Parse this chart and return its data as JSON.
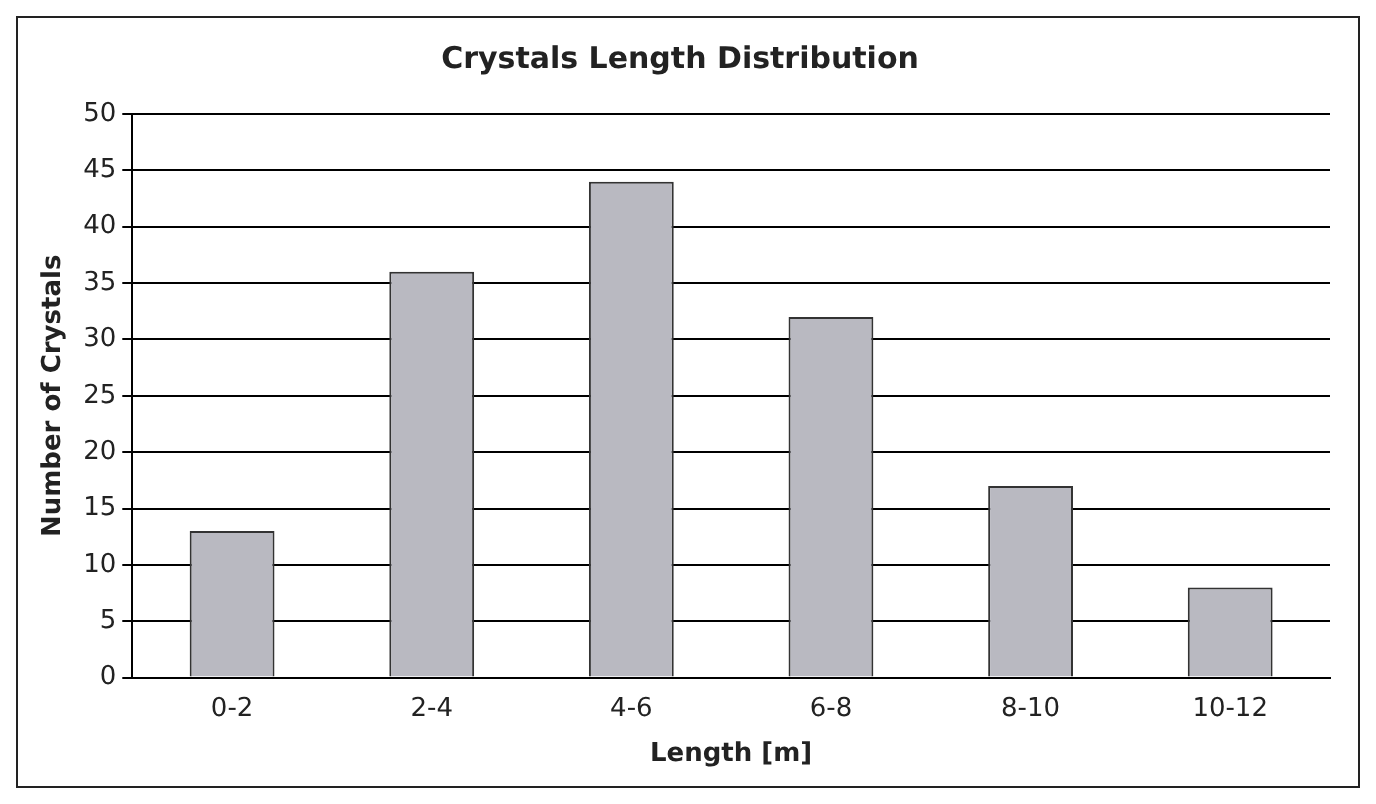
{
  "chart_data": {
    "type": "bar",
    "title": "Crystals Length Distribution",
    "xlabel": "Length [m]",
    "ylabel": "Number of Crystals",
    "categories": [
      "0-2",
      "2-4",
      "4-6",
      "6-8",
      "8-10",
      "10-12"
    ],
    "values": [
      13,
      36,
      44,
      32,
      17,
      8
    ],
    "color": "#b9b9c1",
    "ylim": [
      0,
      50
    ],
    "yticks": [
      0,
      5,
      10,
      15,
      20,
      25,
      30,
      35,
      40,
      45,
      50
    ],
    "grid": "y",
    "legend": false
  }
}
